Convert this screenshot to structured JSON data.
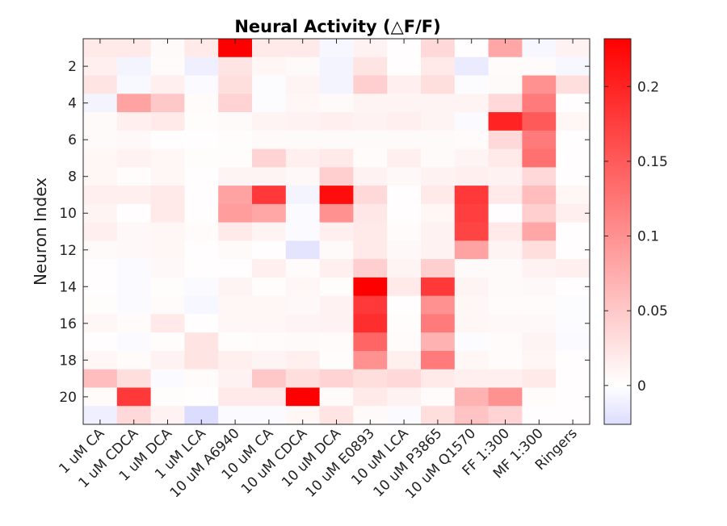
{
  "chart_data": {
    "type": "heatmap",
    "title": "Neural Activity (△F/F)",
    "xlabel": "",
    "ylabel": "Neuron Index",
    "x_categories": [
      "1 uM CA",
      "1 uM CDCA",
      "1 uM DCA",
      "1 uM LCA",
      "10 uM A6940",
      "10 uM CA",
      "10 uM CDCA",
      "10 uM DCA",
      "10 uM E0893",
      "10 uM LCA",
      "10 uM P3865",
      "10 uM Q1570",
      "FF 1:300",
      "MF 1:300",
      "Ringers"
    ],
    "y_range": [
      1,
      21
    ],
    "y_ticks": [
      2,
      4,
      6,
      8,
      10,
      12,
      14,
      16,
      18,
      20
    ],
    "colorbar": {
      "min": -0.026,
      "max": 0.232,
      "ticks": [
        0,
        0.05,
        0.1,
        0.15,
        0.2
      ],
      "tick_labels": [
        "0",
        "0.05",
        "0.1",
        "0.15",
        "0.2"
      ],
      "colormap": [
        "#dcdcff",
        "#ffffff",
        "#ff0000"
      ]
    },
    "values": [
      [
        0.02,
        0.02,
        0.005,
        0.02,
        0.232,
        0.02,
        0.02,
        -0.006,
        0.012,
        0.002,
        0.035,
        0.002,
        0.08,
        -0.006,
        0.012
      ],
      [
        0.015,
        -0.008,
        0.004,
        -0.012,
        0.025,
        0.008,
        0.005,
        -0.008,
        0.025,
        0.002,
        0.02,
        -0.015,
        0.004,
        0.004,
        -0.006
      ],
      [
        0.025,
        -0.005,
        0.015,
        -0.004,
        0.03,
        -0.002,
        0.01,
        -0.008,
        0.045,
        0.015,
        0.03,
        -0.002,
        0.005,
        0.1,
        0.03
      ],
      [
        -0.008,
        0.085,
        0.05,
        0.004,
        0.04,
        -0.002,
        0.008,
        0.005,
        0.01,
        0.01,
        0.01,
        0.01,
        0.035,
        0.12,
        0.002
      ],
      [
        0.005,
        0.015,
        0.02,
        0.003,
        0.005,
        0.01,
        0.012,
        0.015,
        0.012,
        0.015,
        0.01,
        -0.004,
        0.2,
        0.15,
        0.008
      ],
      [
        0.005,
        0.006,
        0.002,
        0.002,
        0.003,
        0.005,
        0.005,
        0.005,
        0.005,
        0.005,
        0.005,
        0.004,
        0.035,
        0.12,
        0.002
      ],
      [
        0.008,
        0.012,
        0.008,
        0.003,
        0.003,
        0.04,
        0.015,
        0.02,
        0.004,
        0.015,
        0.005,
        0.01,
        0.02,
        0.13,
        0.002
      ],
      [
        0.008,
        0.003,
        0.008,
        0.002,
        0.01,
        0.01,
        0.006,
        0.045,
        0.012,
        0.006,
        0.012,
        0.015,
        0.012,
        0.035,
        0.002
      ],
      [
        0.015,
        0.015,
        0.02,
        0.002,
        0.085,
        0.18,
        -0.008,
        0.22,
        0.035,
        0.002,
        0.02,
        0.18,
        0.02,
        0.06,
        0.008
      ],
      [
        0.01,
        0.002,
        0.02,
        0.002,
        0.09,
        0.08,
        -0.004,
        0.1,
        0.022,
        0.002,
        0.008,
        0.175,
        0.002,
        0.045,
        0.015
      ],
      [
        0.015,
        0.006,
        0.008,
        0.004,
        0.02,
        0.01,
        -0.003,
        0.015,
        0.02,
        0.004,
        0.012,
        0.17,
        0.02,
        0.08,
        0.002
      ],
      [
        0.005,
        0.006,
        0.008,
        0.002,
        0.005,
        0.002,
        -0.02,
        0.005,
        0.02,
        0.006,
        0.012,
        0.085,
        0.01,
        0.03,
        0.002
      ],
      [
        0.002,
        -0.003,
        0.006,
        0.002,
        0.002,
        0.015,
        0.004,
        0.015,
        0.045,
        0.01,
        0.045,
        0.005,
        0.005,
        0.012,
        0.015
      ],
      [
        0.002,
        -0.004,
        0.003,
        -0.004,
        0.01,
        0.003,
        0.008,
        0.003,
        0.232,
        0.02,
        0.18,
        0.01,
        0.005,
        0.006,
        0.002
      ],
      [
        0.003,
        -0.003,
        0.004,
        -0.006,
        0.008,
        0.008,
        0.006,
        0.012,
        0.18,
        0.002,
        0.1,
        0.008,
        0.004,
        0.004,
        -0.002
      ],
      [
        0.008,
        0.004,
        0.02,
        0.002,
        0.008,
        0.008,
        0.01,
        0.012,
        0.19,
        0.003,
        0.12,
        0.008,
        0.006,
        0.006,
        -0.002
      ],
      [
        0.002,
        -0.003,
        0.003,
        0.025,
        0.003,
        0.004,
        0.005,
        0.004,
        0.14,
        0.004,
        0.07,
        -0.002,
        0.004,
        0.01,
        -0.004
      ],
      [
        0.008,
        0.004,
        0.012,
        0.025,
        0.015,
        0.01,
        0.015,
        0.003,
        0.1,
        0.015,
        0.12,
        0.008,
        0.004,
        0.008,
        0.002
      ],
      [
        0.06,
        0.03,
        -0.003,
        0.004,
        0.012,
        0.05,
        0.03,
        0.04,
        0.03,
        0.035,
        0.02,
        0.015,
        0.015,
        0.02,
        0.002
      ],
      [
        0.004,
        0.18,
        0.003,
        0.002,
        0.02,
        0.02,
        0.232,
        0.004,
        0.02,
        0.012,
        0.004,
        0.07,
        0.1,
        0.004,
        0.002
      ],
      [
        -0.012,
        0.035,
        0.012,
        -0.026,
        -0.004,
        -0.003,
        0.008,
        0.025,
        0.005,
        -0.004,
        0.03,
        0.055,
        0.04,
        0.002,
        0.002
      ]
    ]
  }
}
